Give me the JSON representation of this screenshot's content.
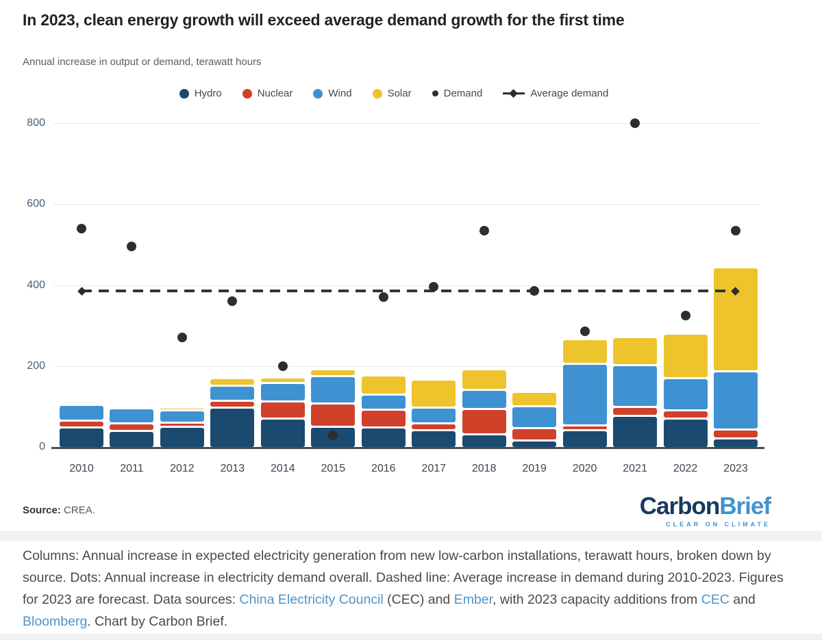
{
  "title": "In 2023, clean energy growth will exceed average demand growth for the first time",
  "subtitle": "Annual increase in output or demand, terawatt hours",
  "legend": [
    {
      "label": "Hydro",
      "color": "#1a4a70",
      "marker": "circle"
    },
    {
      "label": "Nuclear",
      "color": "#d0412a",
      "marker": "circle"
    },
    {
      "label": "Wind",
      "color": "#3e92d2",
      "marker": "circle"
    },
    {
      "label": "Solar",
      "color": "#eec42c",
      "marker": "circle"
    },
    {
      "label": "Demand",
      "color": "#2e2e2e",
      "marker": "dot"
    },
    {
      "label": "Average demand",
      "color": "#2e2e2e",
      "marker": "line-diamond"
    }
  ],
  "chart_data": {
    "type": "bar",
    "stacked": true,
    "title": "In 2023, clean energy growth will exceed average demand growth for the first time",
    "subtitle": "Annual increase in output or demand, terawatt hours",
    "unit": "terawatt hours",
    "categories": [
      "2010",
      "2011",
      "2012",
      "2013",
      "2014",
      "2015",
      "2016",
      "2017",
      "2018",
      "2019",
      "2020",
      "2021",
      "2022",
      "2023"
    ],
    "series": [
      {
        "name": "Hydro",
        "color": "#1a4a70",
        "values": [
          45,
          38,
          47,
          95,
          68,
          47,
          45,
          39,
          29,
          14,
          39,
          75,
          68,
          18
        ]
      },
      {
        "name": "Nuclear",
        "color": "#d0412a",
        "values": [
          13,
          12,
          5,
          12,
          36,
          52,
          40,
          12,
          57,
          25,
          7,
          17,
          15,
          18
        ]
      },
      {
        "name": "Wind",
        "color": "#3e92d2",
        "values": [
          33,
          33,
          26,
          32,
          41,
          63,
          32,
          34,
          42,
          49,
          147,
          98,
          75,
          138
        ]
      },
      {
        "name": "Solar",
        "color": "#eec42c",
        "values": [
          0,
          0,
          2,
          13,
          9,
          12,
          42,
          64,
          47,
          30,
          56,
          63,
          104,
          252
        ]
      }
    ],
    "demand_points": {
      "name": "Demand",
      "values": [
        540,
        495,
        270,
        360,
        200,
        28,
        370,
        395,
        535,
        385,
        285,
        800,
        325,
        535
      ]
    },
    "average_demand_line": 385,
    "yticks": [
      0,
      200,
      400,
      600,
      800
    ],
    "ylim": [
      0,
      815
    ],
    "grid": true,
    "legend_position": "top"
  },
  "source": {
    "label": "Source:",
    "value": " CREA."
  },
  "logo": {
    "part1": "Carbon",
    "part2": "Brief",
    "tagline": "CLEAR ON CLIMATE"
  },
  "footer_lines": [
    [
      {
        "t": "Columns: Annual increase in expected electricity generation from new low-carbon installations, terawatt hours, broken down by"
      }
    ],
    [
      {
        "t": "source. Dots: Annual increase in electricity demand overall. Dashed line: Average increase in demand during 2010-2023. Figures"
      }
    ],
    [
      {
        "t": "for 2023 are forecast. Data sources: "
      },
      {
        "t": "China Electricity Council",
        "link": true
      },
      {
        "t": " (CEC) and "
      },
      {
        "t": "Ember",
        "link": true
      },
      {
        "t": ", with 2023 capacity additions from "
      },
      {
        "t": "CEC",
        "link": true
      },
      {
        "t": " and"
      }
    ],
    [
      {
        "t": "Bloomberg",
        "link": true
      },
      {
        "t": ". Chart by Carbon Brief."
      }
    ]
  ]
}
